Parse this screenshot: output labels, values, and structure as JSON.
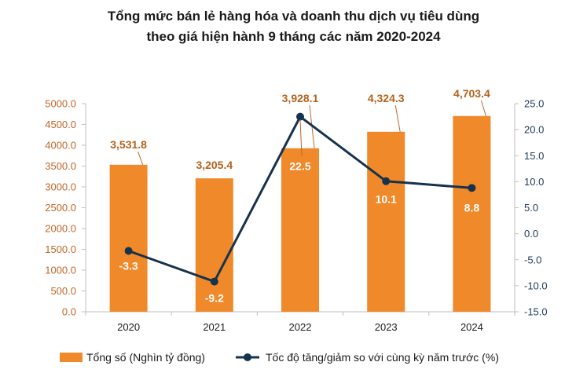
{
  "chart_data": {
    "type": "bar",
    "title_line1": "Tổng mức bán lẻ hàng hóa và doanh thu dịch vụ tiêu dùng",
    "title_line2": "theo giá hiện hành 9 tháng các năm 2020-2024",
    "categories": [
      "2020",
      "2021",
      "2022",
      "2023",
      "2024"
    ],
    "series": [
      {
        "name": "Tổng số (Nghìn tỷ đồng)",
        "type": "bar",
        "axis": "left",
        "values": [
          3531.8,
          3205.4,
          3928.1,
          4324.3,
          4703.4
        ],
        "labels": [
          "3,531.8",
          "3,205.4",
          "3,928.1",
          "4,324.3",
          "4,703.4"
        ]
      },
      {
        "name": "Tốc độ tăng/giảm so với cùng kỳ năm trước (%)",
        "type": "line",
        "axis": "right",
        "values": [
          -3.3,
          -9.2,
          22.5,
          10.1,
          8.8
        ],
        "labels": [
          "-3.3",
          "-9.2",
          "22.5",
          "10.1",
          "8.8"
        ]
      }
    ],
    "left_axis": {
      "ylim": [
        0,
        5000
      ],
      "ticks": [
        "0.0",
        "500.0",
        "1000.0",
        "1500.0",
        "2000.0",
        "2500.0",
        "3000.0",
        "3500.0",
        "4000.0",
        "4500.0",
        "5000.0"
      ]
    },
    "right_axis": {
      "ylim": [
        -15,
        25
      ],
      "ticks": [
        "-15.0",
        "-10.0",
        "-5.0",
        "0.0",
        "5.0",
        "10.0",
        "15.0",
        "20.0",
        "25.0"
      ]
    },
    "legend_position": "bottom",
    "grid": false,
    "colors": {
      "bar": "#f0892a",
      "bar_label": "#b3621d",
      "line": "#17324d",
      "left_axis_text": "#c0662a",
      "right_axis_text": "#1f3a5a"
    }
  }
}
